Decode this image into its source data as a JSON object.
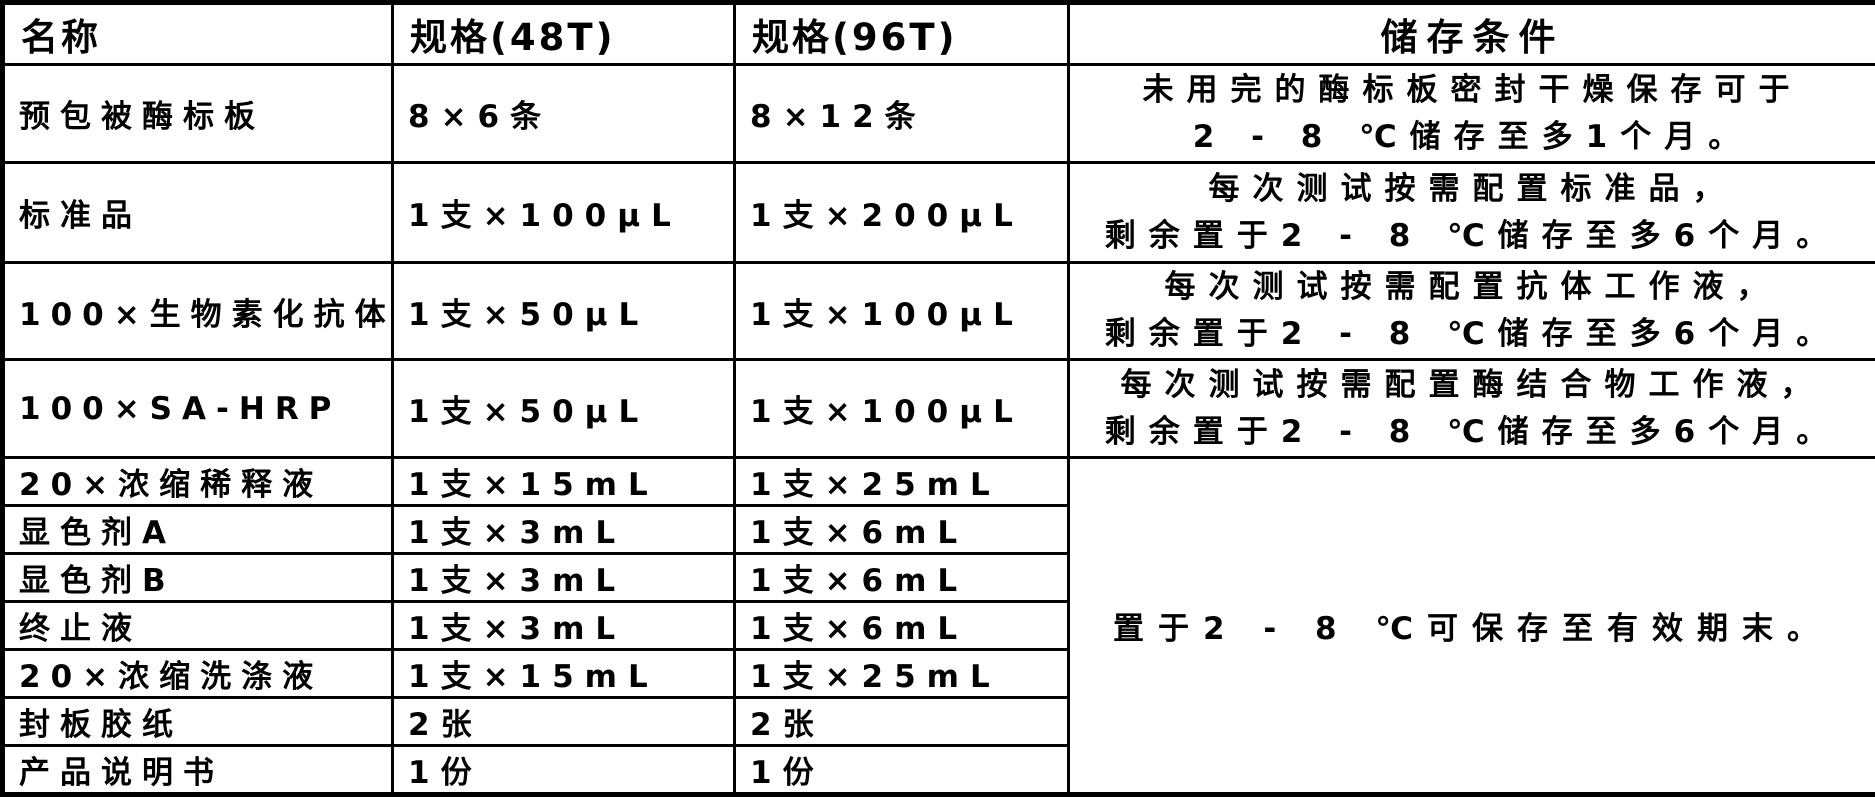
{
  "table": {
    "headers": [
      {
        "label": "名称"
      },
      {
        "label": "规格(48T)"
      },
      {
        "label": "规格(96T)"
      },
      {
        "label": "储存条件"
      }
    ],
    "rows": [
      {
        "name": "预包被酶标板",
        "spec48": "8×6条",
        "spec96": "8×12条",
        "storage": [
          "未用完的酶标板密封干燥保存可于",
          "2 - 8 ℃储存至多1个月。"
        ]
      },
      {
        "name": "标准品",
        "spec48": "1支×100μL",
        "spec96": "1支×200μL",
        "storage": [
          "每次测试按需配置标准品，",
          "剩余置于2 - 8 ℃储存至多6个月。"
        ]
      },
      {
        "name": "100×生物素化抗体",
        "spec48": "1支×50μL",
        "spec96": "1支×100μL",
        "storage": [
          "每次测试按需配置抗体工作液，",
          "剩余置于2 - 8 ℃储存至多6个月。"
        ]
      },
      {
        "name": "100×SA-HRP",
        "spec48": "1支×50μL",
        "spec96": "1支×100μL",
        "storage": [
          "每次测试按需配置酶结合物工作液，",
          "剩余置于2 - 8 ℃储存至多6个月。"
        ]
      },
      {
        "name": "20×浓缩稀释液",
        "spec48": "1支×15mL",
        "spec96": "1支×25mL"
      },
      {
        "name": "显色剂A",
        "spec48": "1支×3mL",
        "spec96": "1支×6mL"
      },
      {
        "name": "显色剂B",
        "spec48": "1支×3mL",
        "spec96": "1支×6mL"
      },
      {
        "name": "终止液",
        "spec48": "1支×3mL",
        "spec96": "1支×6mL"
      },
      {
        "name": "20×浓缩洗涤液",
        "spec48": "1支×15mL",
        "spec96": "1支×25mL"
      },
      {
        "name": "封板胶纸",
        "spec48": "2张",
        "spec96": "2张"
      },
      {
        "name": "产品说明书",
        "spec48": "1份",
        "spec96": "1份"
      }
    ],
    "merged_storage": "置于2 - 8 ℃可保存至有效期末。",
    "merged_storage_row_start": 4,
    "merged_storage_row_span": 7
  },
  "colors": {
    "text": "#000000",
    "border": "#000000",
    "background": "#ffffff"
  }
}
